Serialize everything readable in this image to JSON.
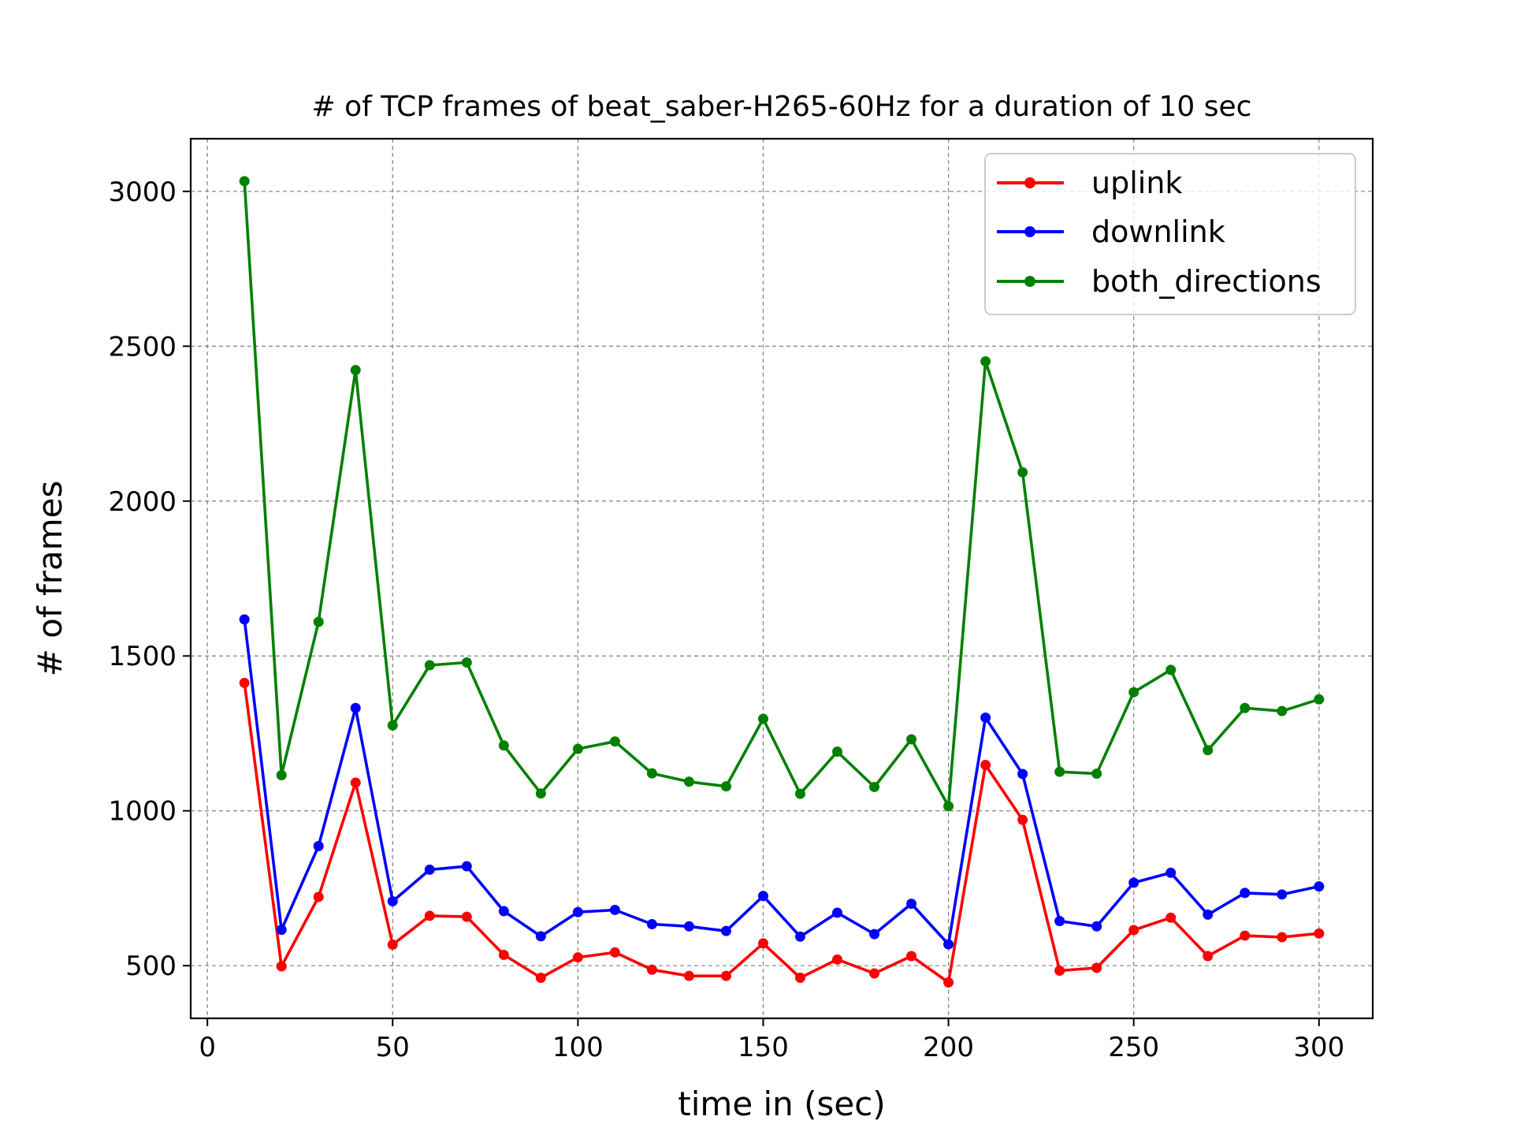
{
  "chart_data": {
    "type": "line",
    "title": "# of TCP frames of beat_saber-H265-60Hz for a duration of 10 sec",
    "xlabel": "time in (sec)",
    "ylabel": "# of frames",
    "xlim": [
      -4.5,
      314.5
    ],
    "ylim": [
      330,
      3170
    ],
    "xticks": [
      0,
      50,
      100,
      150,
      200,
      250,
      300
    ],
    "yticks": [
      500,
      1000,
      1500,
      2000,
      2500,
      3000
    ],
    "grid": true,
    "legend_position": "top-right",
    "x": [
      10,
      20,
      30,
      40,
      50,
      60,
      70,
      80,
      90,
      100,
      110,
      120,
      130,
      140,
      150,
      160,
      170,
      180,
      190,
      200,
      210,
      220,
      230,
      240,
      250,
      260,
      270,
      280,
      290,
      300
    ],
    "series": [
      {
        "name": "uplink",
        "color": "#ff0000",
        "values": [
          1413,
          498,
          722,
          1091,
          568,
          661,
          658,
          535,
          461,
          527,
          543,
          487,
          467,
          467,
          572,
          461,
          520,
          475,
          531,
          446,
          1148,
          971,
          484,
          493,
          615,
          655,
          531,
          597,
          592,
          604
        ]
      },
      {
        "name": "downlink",
        "color": "#0000ff",
        "values": [
          1618,
          616,
          886,
          1332,
          708,
          810,
          821,
          676,
          595,
          673,
          680,
          634,
          627,
          612,
          725,
          594,
          671,
          602,
          700,
          569,
          1301,
          1119,
          644,
          627,
          768,
          800,
          665,
          735,
          730,
          756
        ]
      },
      {
        "name": "both_directions",
        "color": "#008000",
        "values": [
          3033,
          1115,
          1610,
          2423,
          1276,
          1470,
          1479,
          1211,
          1056,
          1200,
          1224,
          1121,
          1094,
          1079,
          1297,
          1055,
          1191,
          1077,
          1231,
          1015,
          2451,
          2093,
          1126,
          1120,
          1383,
          1455,
          1196,
          1332,
          1322,
          1360
        ]
      }
    ]
  }
}
